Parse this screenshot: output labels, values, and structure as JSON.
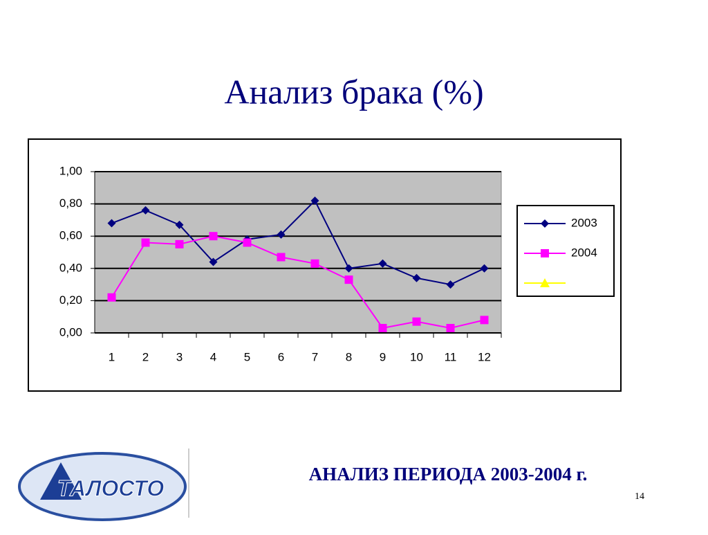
{
  "title": "Анализ брака (%)",
  "footer": "АНАЛИЗ ПЕРИОДА 2003-2004 г.",
  "page_number": "14",
  "logo": "ТАЛОСТО",
  "chart_data": {
    "type": "line",
    "categories": [
      "1",
      "2",
      "3",
      "4",
      "5",
      "6",
      "7",
      "8",
      "9",
      "10",
      "11",
      "12"
    ],
    "series": [
      {
        "name": "2003",
        "color": "#000080",
        "marker": "diamond",
        "values": [
          0.68,
          0.76,
          0.67,
          0.44,
          0.58,
          0.61,
          0.82,
          0.4,
          0.43,
          0.34,
          0.3,
          0.4
        ]
      },
      {
        "name": "2004",
        "color": "#ff00ff",
        "marker": "square",
        "values": [
          0.22,
          0.56,
          0.55,
          0.6,
          0.56,
          0.47,
          0.43,
          0.33,
          0.03,
          0.07,
          0.03,
          0.08
        ]
      },
      {
        "color": "#ffff00",
        "marker": "triangle",
        "values": [
          null,
          null,
          null,
          null,
          null,
          null,
          null,
          null,
          null,
          null,
          null,
          null
        ]
      }
    ],
    "ylim": [
      0,
      1
    ],
    "yticks": [
      {
        "value": 0,
        "label": "0,00"
      },
      {
        "value": 0.2,
        "label": "0,20"
      },
      {
        "value": 0.4,
        "label": "0,40"
      },
      {
        "value": 0.6,
        "label": "0,60"
      },
      {
        "value": 0.8,
        "label": "0,80"
      },
      {
        "value": 1,
        "label": "1,00"
      }
    ],
    "grid": true,
    "plot_background": "#c0c0c0",
    "legend": "right"
  }
}
